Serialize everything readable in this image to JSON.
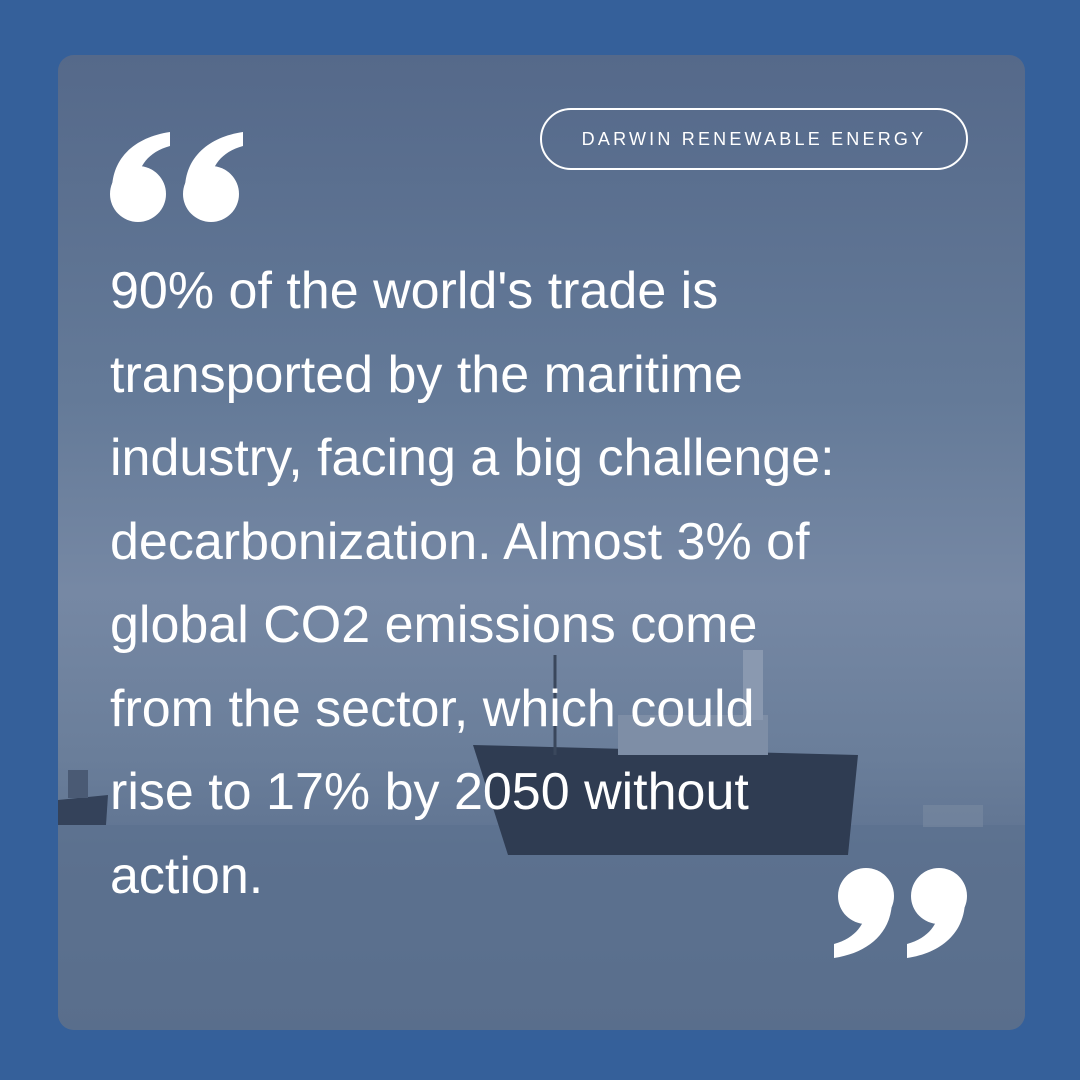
{
  "badge": {
    "label": "DARWIN RENEWABLE ENERGY"
  },
  "quote": {
    "lines": [
      "90% of the world's trade is",
      "transported by the maritime",
      "industry, facing a big challenge:",
      "decarbonization. Almost 3% of",
      "global CO2 emissions come",
      "from the sector, which could",
      "rise to 17% by 2050 without",
      "action."
    ]
  }
}
